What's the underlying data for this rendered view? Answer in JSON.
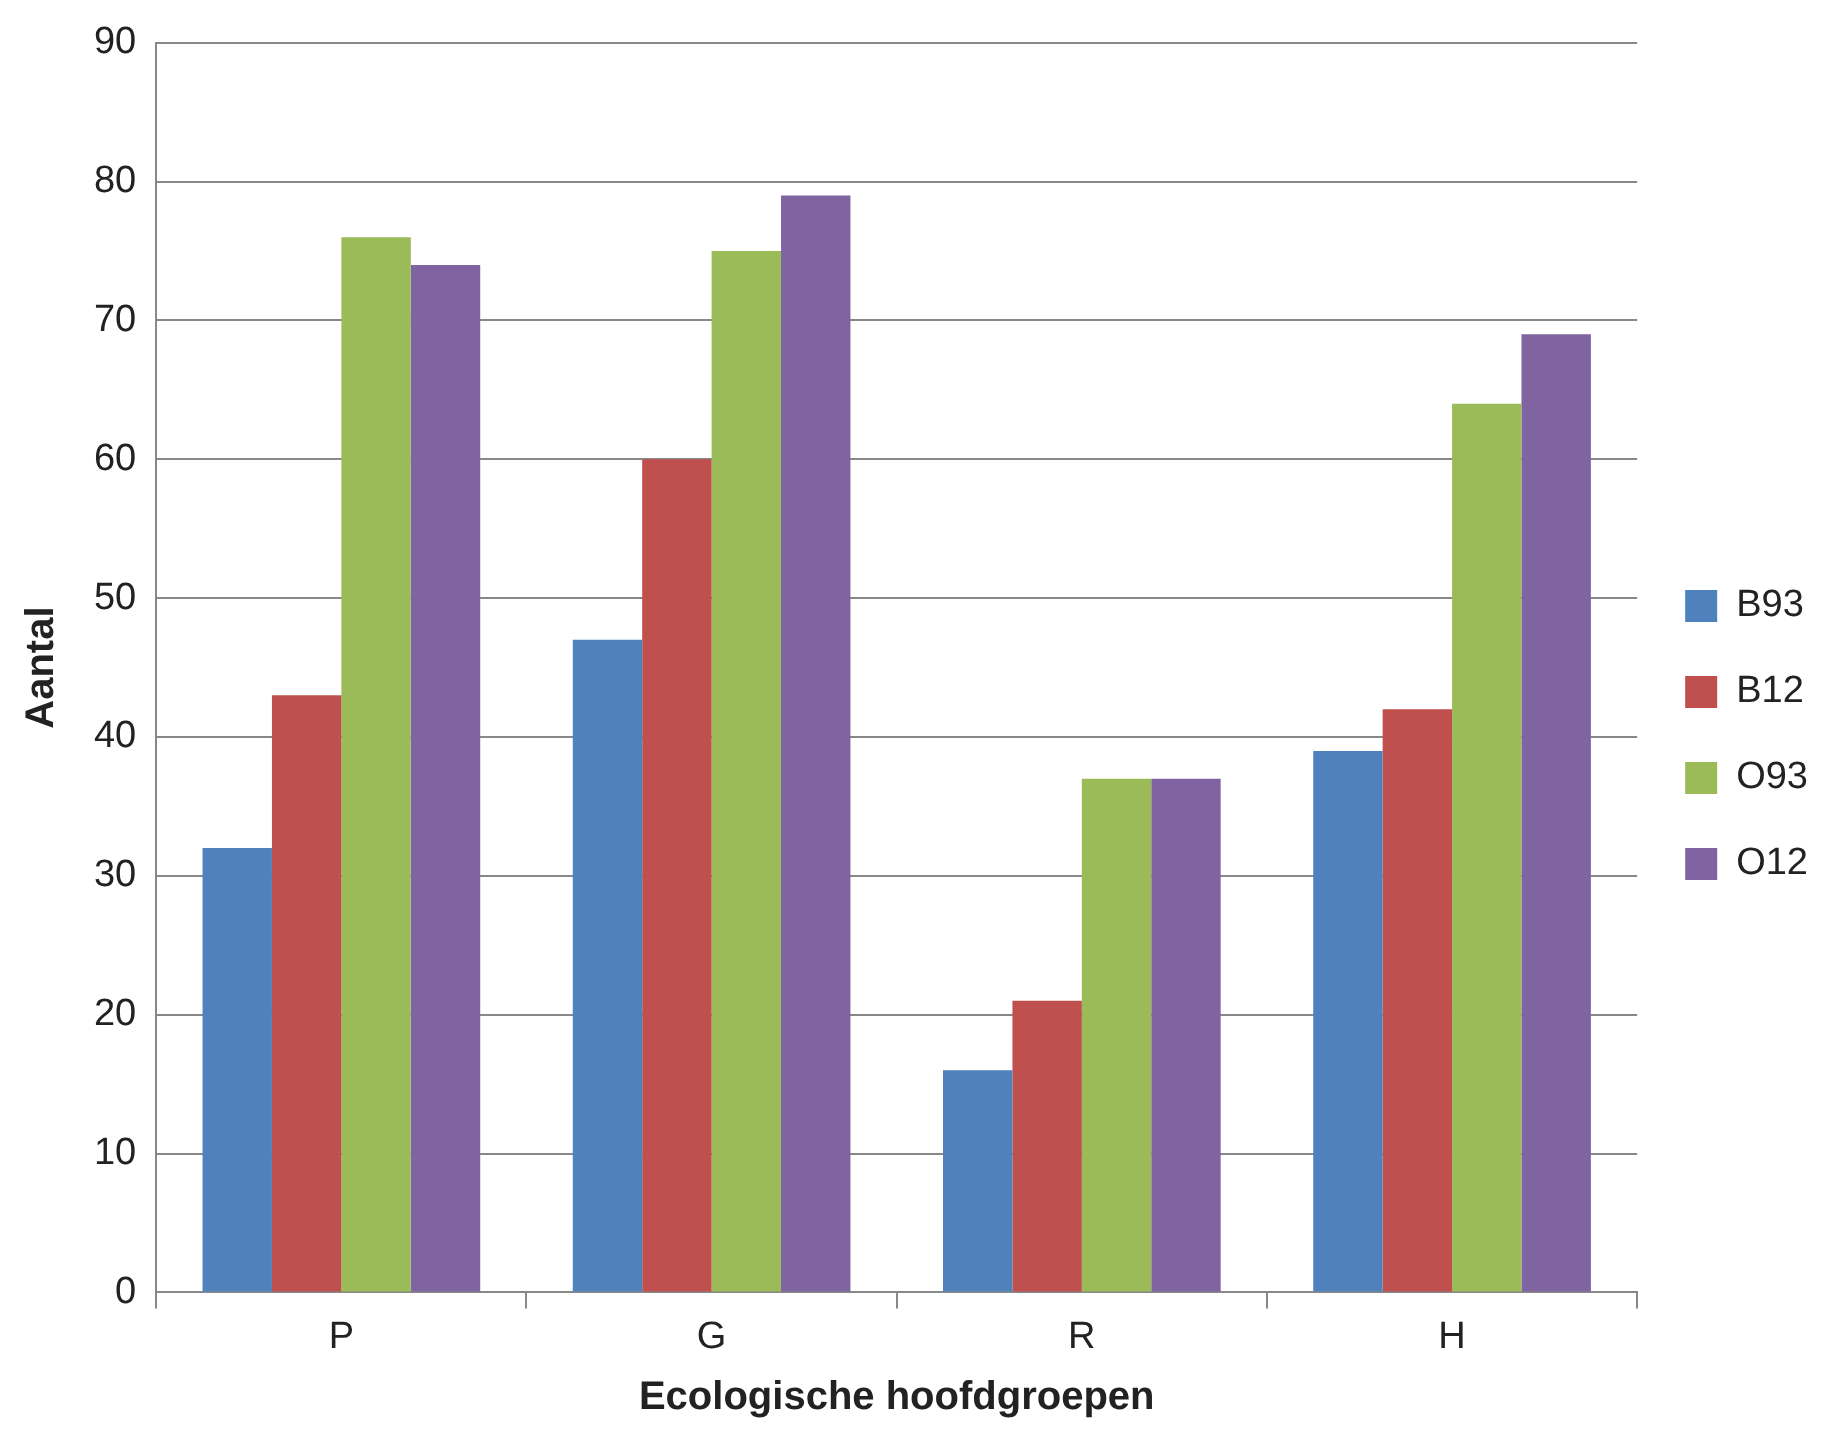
{
  "chart_data": {
    "type": "bar",
    "xlabel": "Ecologische hoofdgroepen",
    "ylabel": "Aantal",
    "categories": [
      "P",
      "G",
      "R",
      "H"
    ],
    "series": [
      {
        "name": "B93",
        "color": "#4f81bd",
        "values": [
          32,
          47,
          16,
          39
        ]
      },
      {
        "name": "B12",
        "color": "#c0504d",
        "values": [
          43,
          60,
          21,
          42
        ]
      },
      {
        "name": "O93",
        "color": "#9bbb59",
        "values": [
          76,
          75,
          37,
          64
        ]
      },
      {
        "name": "O12",
        "color": "#8064a2",
        "values": [
          74,
          79,
          37,
          69
        ]
      }
    ],
    "ylim": [
      0,
      90
    ],
    "yticks": [
      0,
      10,
      20,
      30,
      40,
      50,
      60,
      70,
      80,
      90
    ],
    "grid": "y",
    "legend": "right"
  }
}
